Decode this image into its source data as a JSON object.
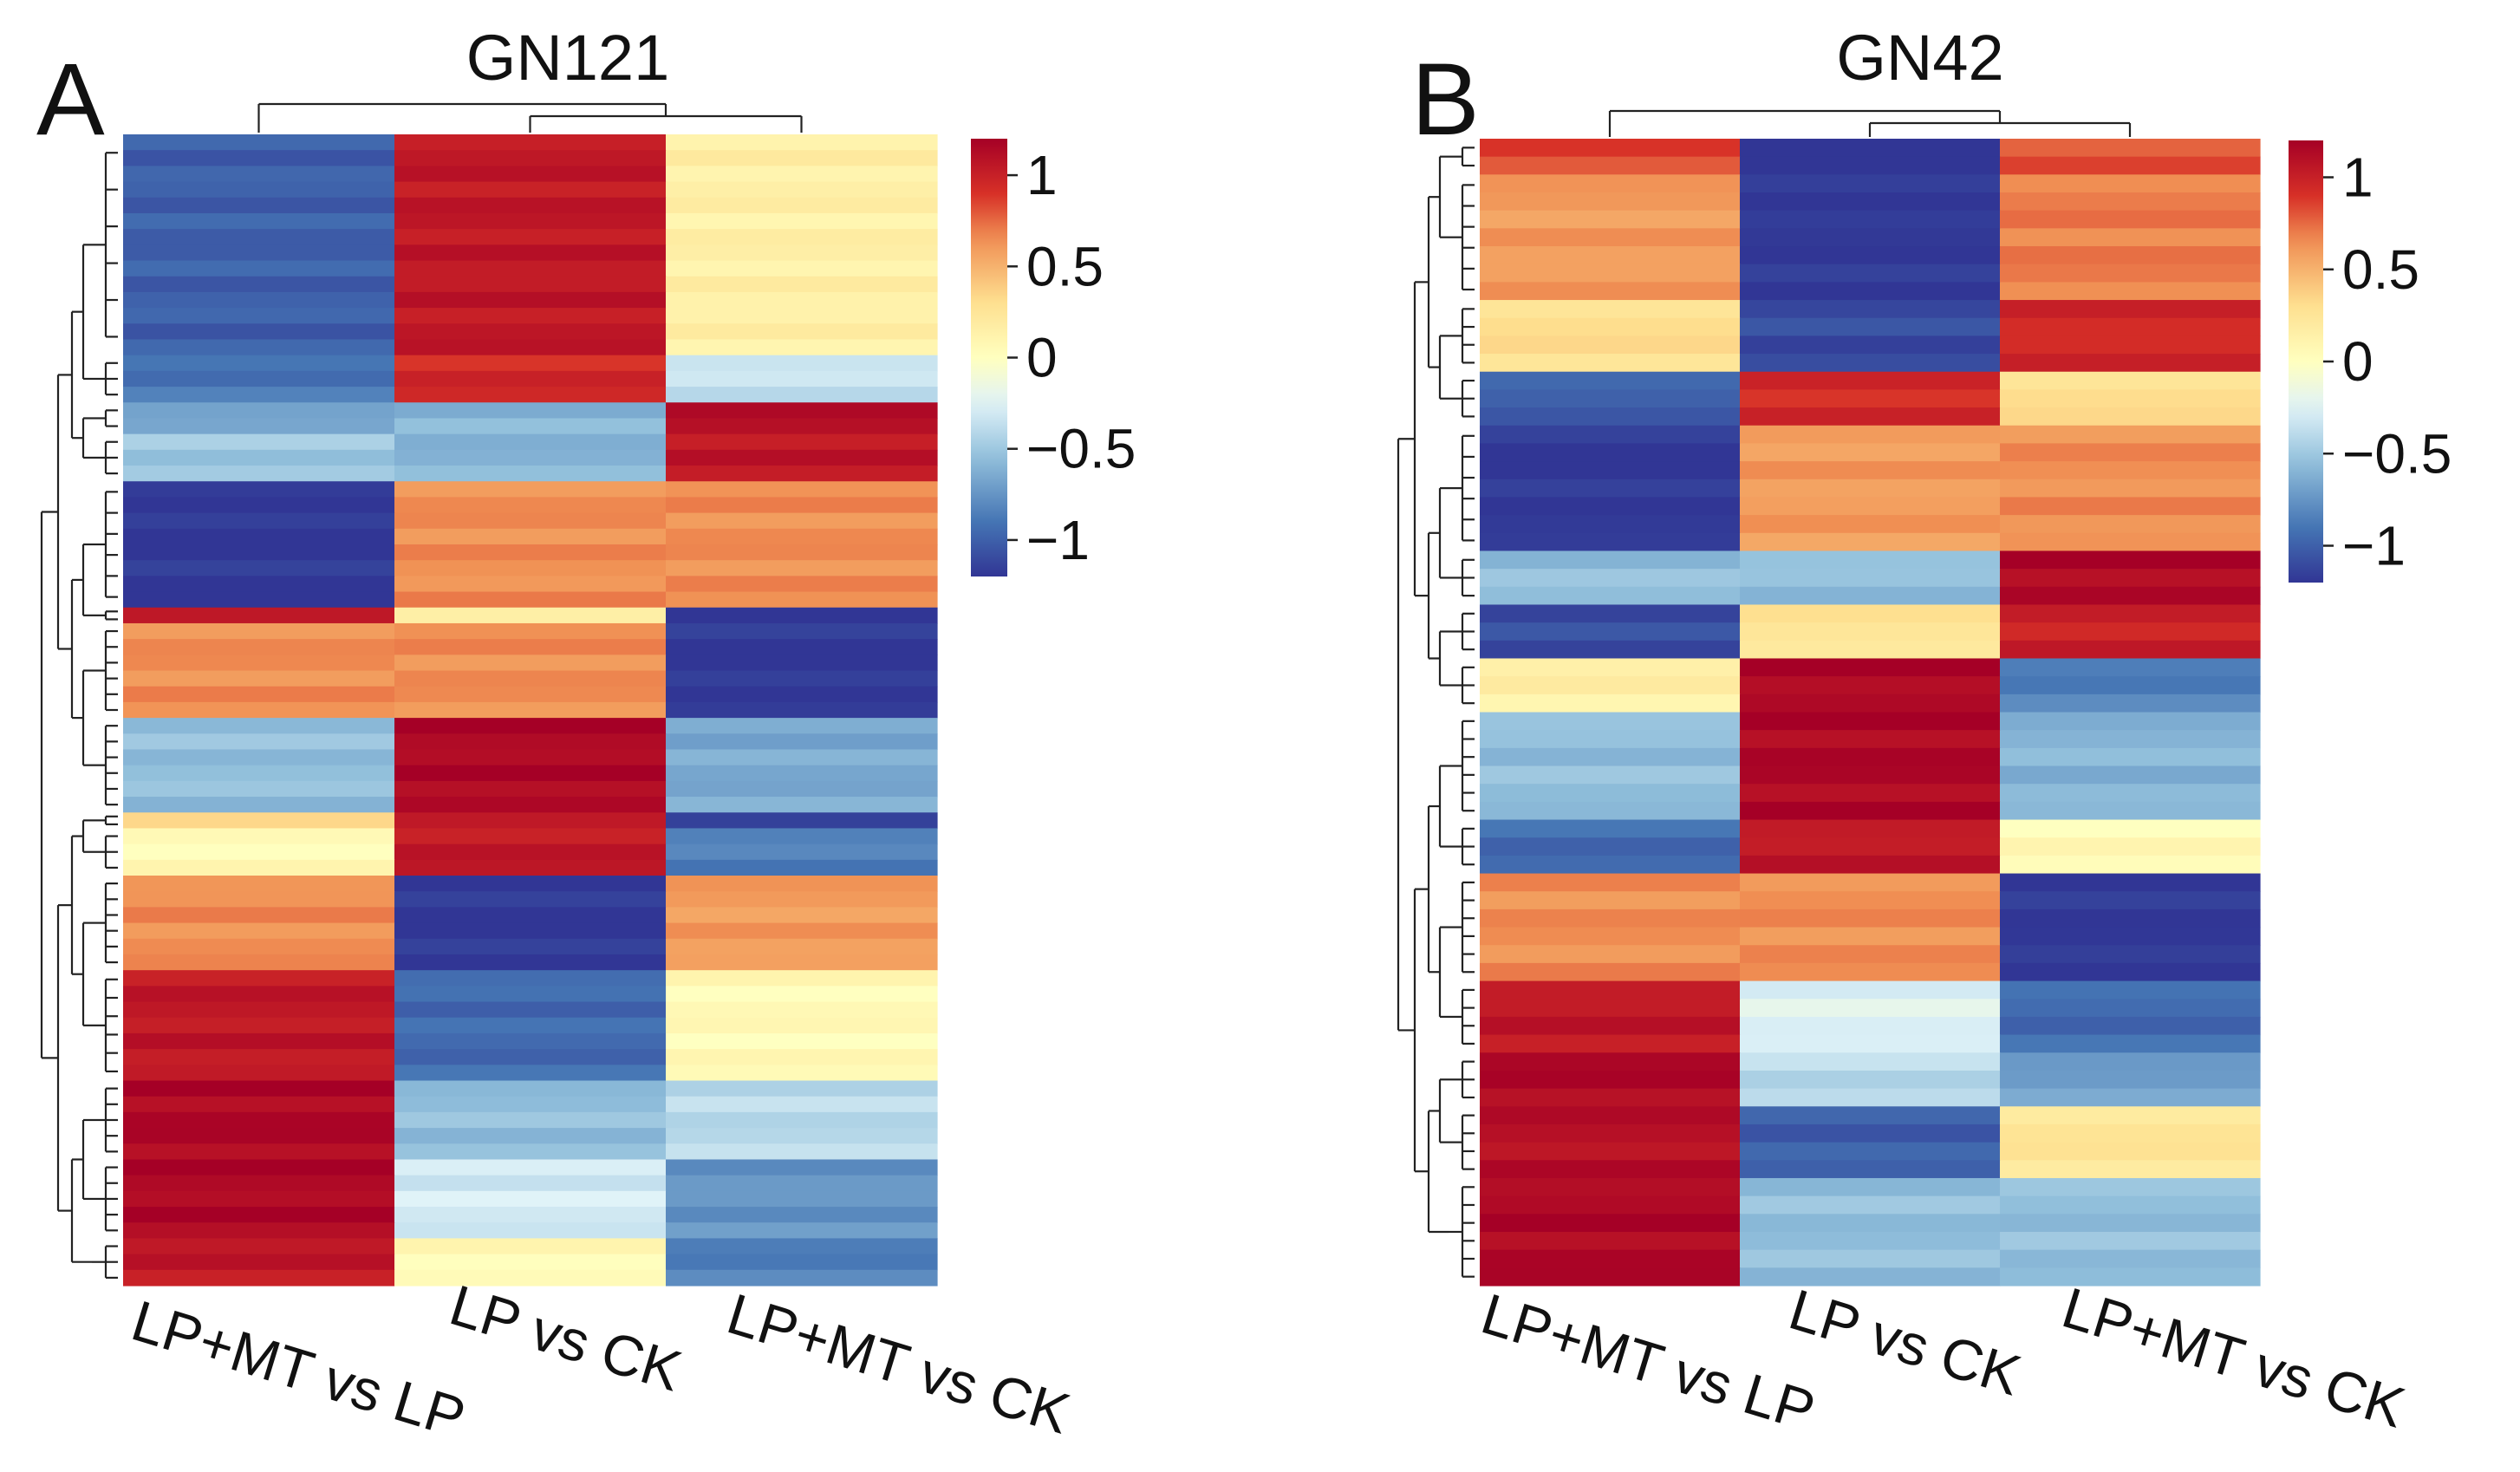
{
  "chart_data": [
    {
      "type": "heatmap",
      "panel_label": "A",
      "title": "GN121",
      "columns": [
        "LP+MT vs LP",
        "LP vs CK",
        "LP+MT vs CK"
      ],
      "value_range": [
        -1.2,
        1.2
      ],
      "colorbar_ticks": [
        {
          "value": 1,
          "label": "1"
        },
        {
          "value": 0.5,
          "label": "0.5"
        },
        {
          "value": 0,
          "label": "0"
        },
        {
          "value": -0.5,
          "label": "−0.5"
        },
        {
          "value": -1,
          "label": "−1"
        }
      ],
      "row_blocks": [
        {
          "rows": 14,
          "values": [
            -1.0,
            1.05,
            0.15
          ]
        },
        {
          "rows": 3,
          "values": [
            -0.9,
            0.95,
            -0.35
          ]
        },
        {
          "rows": 2,
          "values": [
            -0.65,
            -0.6,
            1.1
          ]
        },
        {
          "rows": 3,
          "values": [
            -0.5,
            -0.6,
            1.05
          ]
        },
        {
          "rows": 8,
          "values": [
            -1.2,
            0.65,
            0.65
          ]
        },
        {
          "rows": 1,
          "values": [
            1.0,
            0.2,
            -1.2
          ]
        },
        {
          "rows": 6,
          "values": [
            0.65,
            0.65,
            -1.2
          ]
        },
        {
          "rows": 6,
          "values": [
            -0.55,
            1.15,
            -0.65
          ]
        },
        {
          "rows": 1,
          "values": [
            0.3,
            1.0,
            -1.1
          ]
        },
        {
          "rows": 3,
          "values": [
            0.05,
            1.05,
            -0.85
          ]
        },
        {
          "rows": 6,
          "values": [
            0.65,
            -1.2,
            0.6
          ]
        },
        {
          "rows": 7,
          "values": [
            1.05,
            -0.95,
            0.05
          ]
        },
        {
          "rows": 5,
          "values": [
            1.15,
            -0.55,
            -0.4
          ]
        },
        {
          "rows": 5,
          "values": [
            1.15,
            -0.3,
            -0.75
          ]
        },
        {
          "rows": 3,
          "values": [
            1.05,
            0.05,
            -0.85
          ]
        }
      ]
    },
    {
      "type": "heatmap",
      "panel_label": "B",
      "title": "GN42",
      "columns": [
        "LP+MT vs LP",
        "LP vs CK",
        "LP+MT vs CK"
      ],
      "value_range": [
        -1.2,
        1.2
      ],
      "colorbar_ticks": [
        {
          "value": 1,
          "label": "1"
        },
        {
          "value": 0.5,
          "label": "0.5"
        },
        {
          "value": 0,
          "label": "0"
        },
        {
          "value": -0.5,
          "label": "−0.5"
        },
        {
          "value": -1,
          "label": "−1"
        }
      ],
      "row_blocks": [
        {
          "rows": 2,
          "values": [
            0.85,
            -1.2,
            0.8
          ]
        },
        {
          "rows": 7,
          "values": [
            0.6,
            -1.2,
            0.7
          ]
        },
        {
          "rows": 4,
          "values": [
            0.3,
            -1.1,
            0.95
          ]
        },
        {
          "rows": 3,
          "values": [
            -1.0,
            0.95,
            0.3
          ]
        },
        {
          "rows": 7,
          "values": [
            -1.2,
            0.6,
            0.65
          ]
        },
        {
          "rows": 3,
          "values": [
            -0.55,
            -0.55,
            1.15
          ]
        },
        {
          "rows": 3,
          "values": [
            -1.1,
            0.25,
            1.0
          ]
        },
        {
          "rows": 3,
          "values": [
            0.15,
            1.15,
            -0.85
          ]
        },
        {
          "rows": 6,
          "values": [
            -0.55,
            1.15,
            -0.6
          ]
        },
        {
          "rows": 3,
          "values": [
            -0.95,
            1.05,
            0.05
          ]
        },
        {
          "rows": 6,
          "values": [
            0.65,
            0.65,
            -1.2
          ]
        },
        {
          "rows": 4,
          "values": [
            1.05,
            -0.25,
            -0.95
          ]
        },
        {
          "rows": 3,
          "values": [
            1.15,
            -0.4,
            -0.7
          ]
        },
        {
          "rows": 4,
          "values": [
            1.1,
            -1.0,
            0.25
          ]
        },
        {
          "rows": 6,
          "values": [
            1.15,
            -0.55,
            -0.55
          ]
        }
      ]
    }
  ]
}
